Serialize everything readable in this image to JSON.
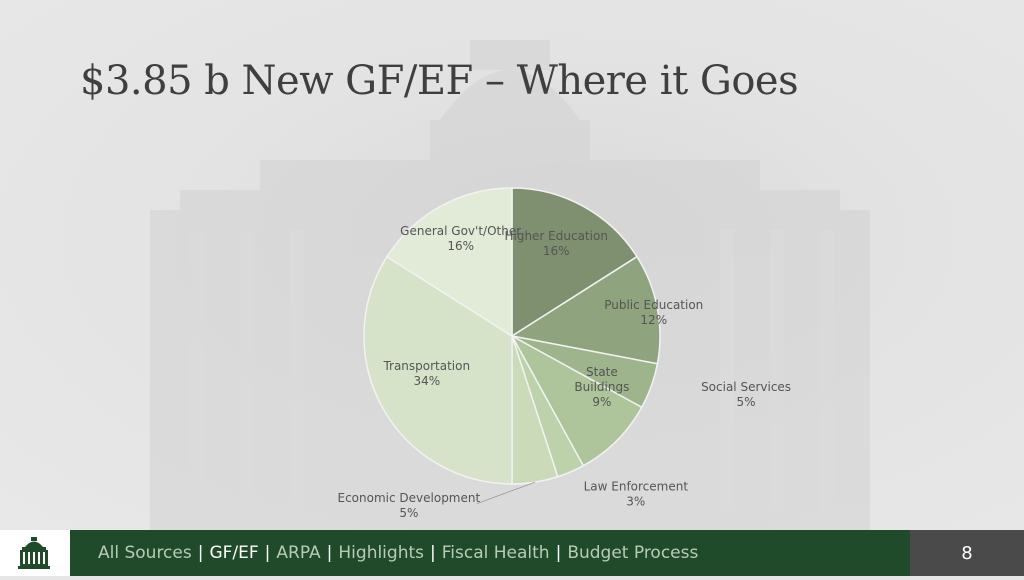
{
  "title": "$3.85 b New GF/EF – Where it Goes",
  "chart_data": {
    "type": "pie",
    "title": "",
    "start_angle_deg": 0,
    "direction": "clockwise",
    "slices": [
      {
        "label": "Higher Education",
        "value": 16,
        "value_label": "16%",
        "color": "#7f9070"
      },
      {
        "label": "Public Education",
        "value": 12,
        "value_label": "12%",
        "color": "#8fa37e"
      },
      {
        "label": "Social Services",
        "value": 5,
        "value_label": "5%",
        "color": "#9eb48c"
      },
      {
        "label": "State Buildings",
        "label_lines": [
          "State",
          "Buildings"
        ],
        "value": 9,
        "value_label": "9%",
        "color": "#aec49b"
      },
      {
        "label": "Law Enforcement",
        "value": 3,
        "value_label": "3%",
        "color": "#bdd1ab"
      },
      {
        "label": "Economic Development",
        "value": 5,
        "value_label": "5%",
        "color": "#cbdbba"
      },
      {
        "label": "Transportation",
        "value": 34,
        "value_label": "34%",
        "color": "#d7e3c9"
      },
      {
        "label": "General Gov't/Other",
        "value": 16,
        "value_label": "16%",
        "color": "#e2ebd8"
      }
    ]
  },
  "footer": {
    "nav": [
      {
        "label": "All Sources",
        "active": false
      },
      {
        "label": "GF/EF",
        "active": true
      },
      {
        "label": "ARPA",
        "active": false
      },
      {
        "label": "Highlights",
        "active": false
      },
      {
        "label": "Fiscal Health",
        "active": false
      },
      {
        "label": "Budget Process",
        "active": false
      }
    ],
    "separator": "|",
    "page_number": "8",
    "colors": {
      "bar": "#1f4b2a",
      "page_box": "#4a4a4a"
    }
  }
}
